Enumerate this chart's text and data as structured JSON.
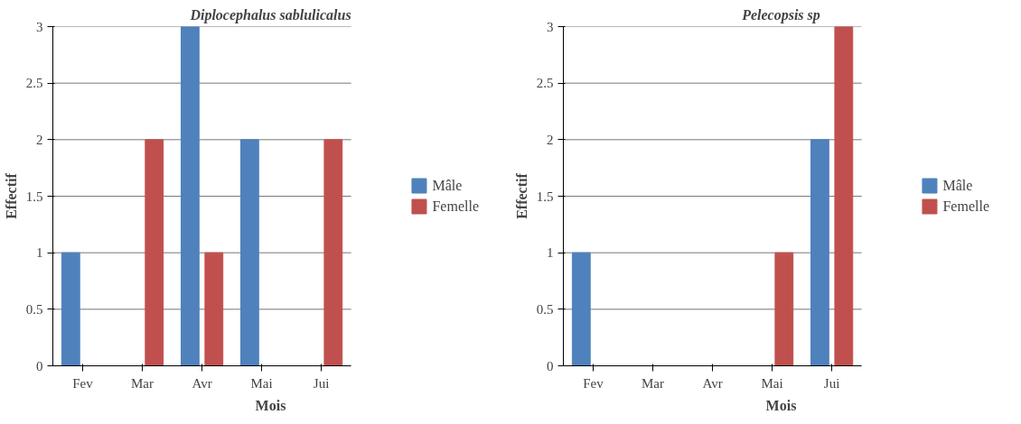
{
  "chart_data": [
    {
      "type": "bar",
      "title": "Diplocephalus sablulicalus",
      "xlabel": "Mois",
      "ylabel": "Effectif",
      "categories": [
        "Fev",
        "Mar",
        "Avr",
        "Mai",
        "Jui"
      ],
      "series": [
        {
          "name": "Mâle",
          "color": "#4f81bd",
          "values": [
            1,
            0,
            3,
            2,
            0
          ]
        },
        {
          "name": "Femelle",
          "color": "#c0504d",
          "values": [
            0,
            2,
            1,
            0,
            2
          ]
        }
      ],
      "ylim": [
        0,
        3
      ],
      "yticks": [
        0,
        0.5,
        1,
        1.5,
        2,
        2.5,
        3
      ],
      "grid": "y",
      "legend": "right"
    },
    {
      "type": "bar",
      "title": "Pelecopsis sp",
      "xlabel": "Mois",
      "ylabel": "Effectif",
      "categories": [
        "Fev",
        "Mar",
        "Avr",
        "Mai",
        "Jui"
      ],
      "series": [
        {
          "name": "Mâle",
          "color": "#4f81bd",
          "values": [
            1,
            0,
            0,
            0,
            2
          ]
        },
        {
          "name": "Femelle",
          "color": "#c0504d",
          "values": [
            0,
            0,
            0,
            1,
            3
          ]
        }
      ],
      "ylim": [
        0,
        3
      ],
      "yticks": [
        0,
        0.5,
        1,
        1.5,
        2,
        2.5,
        3
      ],
      "grid": "y",
      "legend": "right"
    }
  ]
}
